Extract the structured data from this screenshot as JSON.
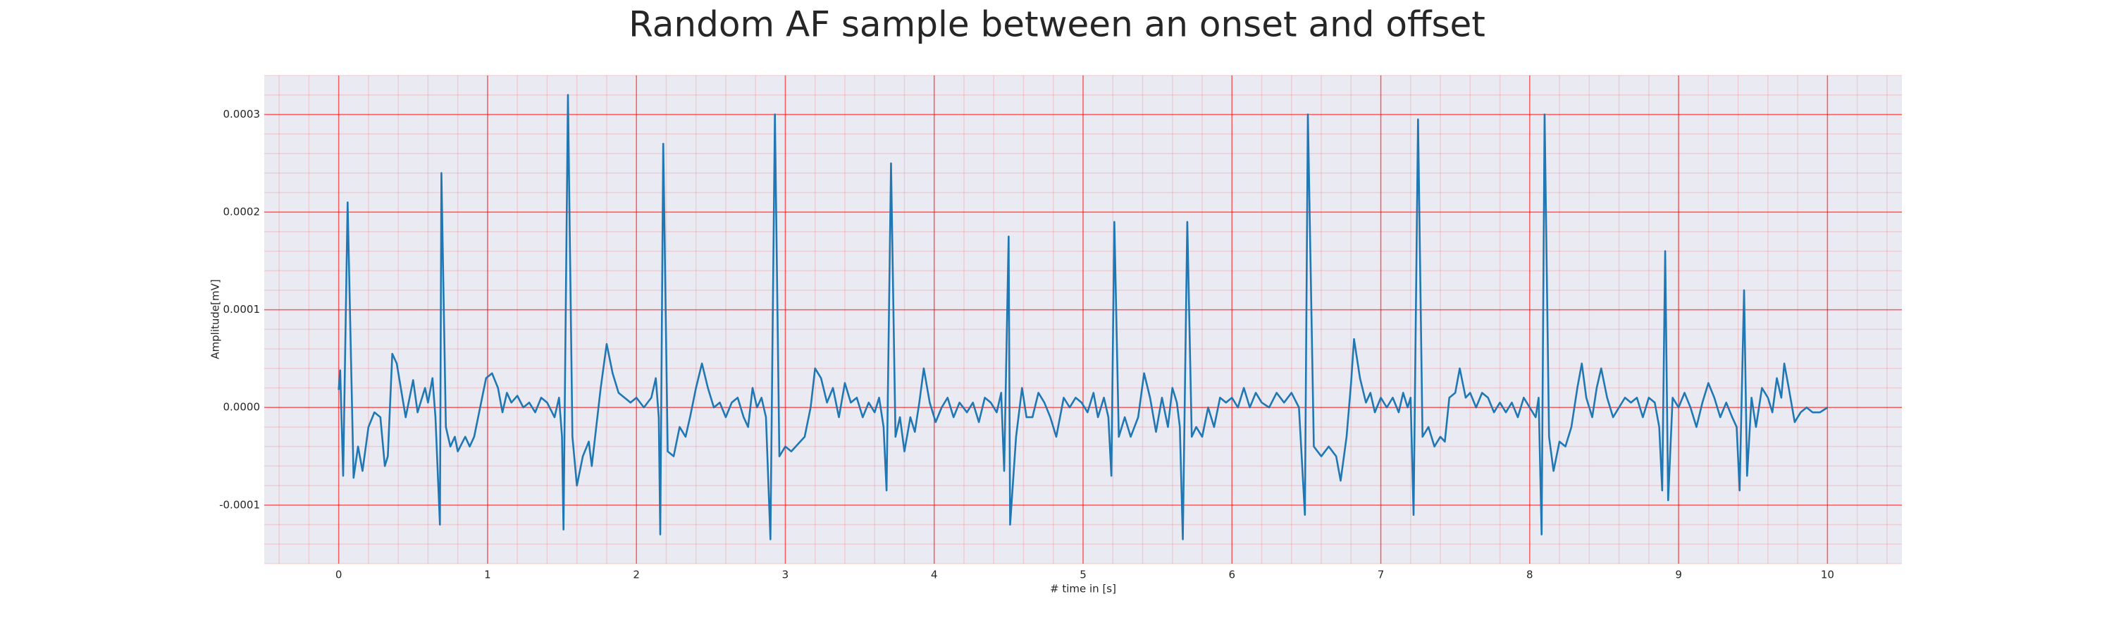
{
  "chart_data": {
    "type": "line",
    "title": "Random AF sample between an onset and offset",
    "xlabel": "# time in [s]",
    "ylabel": "Amplitude[mV]",
    "color": "#1f77b4",
    "grid": true,
    "minor_grid": true,
    "grid_color": "#ff0000",
    "xlim": [
      -0.5,
      10.5
    ],
    "ylim": [
      -0.00016,
      0.00034
    ],
    "xticks": [
      0,
      1,
      2,
      3,
      4,
      5,
      6,
      7,
      8,
      9,
      10
    ],
    "yticks": [
      -0.0001,
      {
        "value": 0,
        "label": "0.0000"
      },
      0.0001,
      0.0002,
      0.0003
    ],
    "x": [
      0,
      0.01,
      0.03,
      0.06,
      0.1,
      0.13,
      0.16,
      0.2,
      0.24,
      0.28,
      0.31,
      0.33,
      0.36,
      0.39,
      0.45,
      0.5,
      0.53,
      0.58,
      0.6,
      0.63,
      0.65,
      0.68,
      0.69,
      0.72,
      0.75,
      0.78,
      0.8,
      0.85,
      0.88,
      0.91,
      0.95,
      0.99,
      1.03,
      1.07,
      1.1,
      1.13,
      1.16,
      1.2,
      1.24,
      1.28,
      1.32,
      1.36,
      1.4,
      1.45,
      1.48,
      1.5,
      1.51,
      1.54,
      1.57,
      1.6,
      1.64,
      1.68,
      1.7,
      1.73,
      1.76,
      1.8,
      1.84,
      1.88,
      1.92,
      1.96,
      2.0,
      2.05,
      2.1,
      2.13,
      2.15,
      2.16,
      2.18,
      2.21,
      2.25,
      2.29,
      2.33,
      2.36,
      2.4,
      2.44,
      2.48,
      2.52,
      2.56,
      2.6,
      2.64,
      2.68,
      2.72,
      2.75,
      2.78,
      2.81,
      2.84,
      2.87,
      2.9,
      2.93,
      2.96,
      3.0,
      3.04,
      3.1,
      3.13,
      3.17,
      3.2,
      3.24,
      3.28,
      3.32,
      3.36,
      3.4,
      3.44,
      3.48,
      3.52,
      3.56,
      3.6,
      3.63,
      3.66,
      3.68,
      3.71,
      3.74,
      3.77,
      3.8,
      3.84,
      3.87,
      3.9,
      3.93,
      3.97,
      4.01,
      4.05,
      4.09,
      4.13,
      4.17,
      4.22,
      4.26,
      4.3,
      4.34,
      4.38,
      4.42,
      4.45,
      4.47,
      4.5,
      4.51,
      4.55,
      4.59,
      4.62,
      4.66,
      4.7,
      4.74,
      4.78,
      4.82,
      4.87,
      4.91,
      4.95,
      4.99,
      5.03,
      5.07,
      5.1,
      5.14,
      5.17,
      5.19,
      5.21,
      5.24,
      5.28,
      5.32,
      5.37,
      5.41,
      5.45,
      5.49,
      5.53,
      5.57,
      5.6,
      5.63,
      5.65,
      5.67,
      5.7,
      5.73,
      5.76,
      5.8,
      5.84,
      5.88,
      5.92,
      5.96,
      6.0,
      6.04,
      6.08,
      6.12,
      6.16,
      6.2,
      6.25,
      6.3,
      6.35,
      6.4,
      6.45,
      6.49,
      6.51,
      6.55,
      6.6,
      6.65,
      6.7,
      6.73,
      6.77,
      6.8,
      6.82,
      6.86,
      6.9,
      6.93,
      6.96,
      7.0,
      7.04,
      7.08,
      7.12,
      7.15,
      7.18,
      7.2,
      7.22,
      7.25,
      7.28,
      7.32,
      7.36,
      7.4,
      7.43,
      7.46,
      7.5,
      7.53,
      7.57,
      7.6,
      7.64,
      7.68,
      7.72,
      7.76,
      7.8,
      7.84,
      7.88,
      7.92,
      7.96,
      8.0,
      8.04,
      8.06,
      8.08,
      8.1,
      8.13,
      8.16,
      8.2,
      8.24,
      8.28,
      8.32,
      8.35,
      8.38,
      8.42,
      8.45,
      8.48,
      8.52,
      8.56,
      8.6,
      8.64,
      8.68,
      8.72,
      8.76,
      8.8,
      8.84,
      8.87,
      8.89,
      8.91,
      8.93,
      8.96,
      9.0,
      9.04,
      9.08,
      9.12,
      9.16,
      9.2,
      9.24,
      9.28,
      9.32,
      9.36,
      9.39,
      9.41,
      9.44,
      9.46,
      9.49,
      9.52,
      9.56,
      9.6,
      9.63,
      9.66,
      9.69,
      9.71,
      9.74,
      9.78,
      9.82,
      9.86,
      9.9,
      9.95,
      10.0
    ],
    "values": [
      1.8e-05,
      3.8e-05,
      -7e-05,
      0.00021,
      -7.2e-05,
      -4e-05,
      -6.5e-05,
      -2e-05,
      -5e-06,
      -1e-05,
      -6e-05,
      -5e-05,
      5.5e-05,
      4.5e-05,
      -1e-05,
      2.8e-05,
      -5e-06,
      2e-05,
      5e-06,
      3e-05,
      -1e-05,
      -0.00012,
      0.00024,
      -2e-05,
      -4e-05,
      -3e-05,
      -4.5e-05,
      -3e-05,
      -4e-05,
      -3e-05,
      0,
      3e-05,
      3.5e-05,
      2e-05,
      -5e-06,
      1.5e-05,
      5e-06,
      1.2e-05,
      0,
      5e-06,
      -5e-06,
      1e-05,
      5e-06,
      -1e-05,
      1e-05,
      -3e-05,
      -0.000125,
      0.00032,
      -3e-05,
      -8e-05,
      -5e-05,
      -3.5e-05,
      -6e-05,
      -2e-05,
      2e-05,
      6.5e-05,
      3.5e-05,
      1.5e-05,
      1e-05,
      5e-06,
      1e-05,
      0,
      1e-05,
      3e-05,
      -1e-05,
      -0.00013,
      0.00027,
      -4.5e-05,
      -5e-05,
      -2e-05,
      -3e-05,
      -1e-05,
      2e-05,
      4.5e-05,
      2e-05,
      0,
      5e-06,
      -1e-05,
      5e-06,
      1e-05,
      -1e-05,
      -2e-05,
      2e-05,
      0,
      1e-05,
      -1e-05,
      -0.000135,
      0.0003,
      -5e-05,
      -4e-05,
      -4.5e-05,
      -3.5e-05,
      -3e-05,
      0,
      4e-05,
      3e-05,
      5e-06,
      2e-05,
      -1e-05,
      2.5e-05,
      5e-06,
      1e-05,
      -1e-05,
      5e-06,
      -5e-06,
      1e-05,
      -2e-05,
      -8.5e-05,
      0.00025,
      -3e-05,
      -1e-05,
      -4.5e-05,
      -1e-05,
      -2.5e-05,
      5e-06,
      4e-05,
      5e-06,
      -1.5e-05,
      0,
      1e-05,
      -1e-05,
      5e-06,
      -5e-06,
      5e-06,
      -1.5e-05,
      1e-05,
      5e-06,
      -5e-06,
      1.5e-05,
      -6.5e-05,
      0.000175,
      -0.00012,
      -3e-05,
      2e-05,
      -1e-05,
      -1e-05,
      1.5e-05,
      5e-06,
      -1e-05,
      -3e-05,
      1e-05,
      0,
      1e-05,
      5e-06,
      -5e-06,
      1.5e-05,
      -1e-05,
      1e-05,
      -1e-05,
      -7e-05,
      0.00019,
      -3e-05,
      -1e-05,
      -3e-05,
      -1e-05,
      3.5e-05,
      1e-05,
      -2.5e-05,
      1e-05,
      -2e-05,
      2e-05,
      5e-06,
      -2e-05,
      -0.000135,
      0.00019,
      -3e-05,
      -2e-05,
      -3e-05,
      0,
      -2e-05,
      1e-05,
      5e-06,
      1e-05,
      0,
      2e-05,
      0,
      1.5e-05,
      5e-06,
      0,
      1.5e-05,
      5e-06,
      1.5e-05,
      0,
      -0.00011,
      0.0003,
      -4e-05,
      -5e-05,
      -4e-05,
      -5e-05,
      -7.5e-05,
      -3e-05,
      2.5e-05,
      7e-05,
      3e-05,
      5e-06,
      1.5e-05,
      -5e-06,
      1e-05,
      0,
      1e-05,
      -5e-06,
      1.5e-05,
      0,
      1e-05,
      -0.00011,
      0.000295,
      -3e-05,
      -2e-05,
      -4e-05,
      -3e-05,
      -3.5e-05,
      1e-05,
      1.5e-05,
      4e-05,
      1e-05,
      1.5e-05,
      0,
      1.5e-05,
      1e-05,
      -5e-06,
      5e-06,
      -5e-06,
      5e-06,
      -1e-05,
      1e-05,
      0,
      -1e-05,
      1e-05,
      -0.00013,
      0.0003,
      -3e-05,
      -6.5e-05,
      -3.5e-05,
      -4e-05,
      -2e-05,
      2e-05,
      4.5e-05,
      1e-05,
      -1e-05,
      2e-05,
      4e-05,
      1e-05,
      -1e-05,
      0,
      1e-05,
      5e-06,
      1e-05,
      -1e-05,
      1e-05,
      5e-06,
      -2e-05,
      -8.5e-05,
      0.00016,
      -9.5e-05,
      1e-05,
      0,
      1.5e-05,
      0,
      -2e-05,
      5e-06,
      2.5e-05,
      1e-05,
      -1e-05,
      5e-06,
      -1e-05,
      -2e-05,
      -8.5e-05,
      0.00012,
      -7e-05,
      1e-05,
      -2e-05,
      2e-05,
      1e-05,
      -5e-06,
      3e-05,
      1e-05,
      4.5e-05,
      2e-05,
      -1.5e-05,
      -5e-06,
      0,
      -5e-06,
      -5e-06,
      0
    ]
  }
}
